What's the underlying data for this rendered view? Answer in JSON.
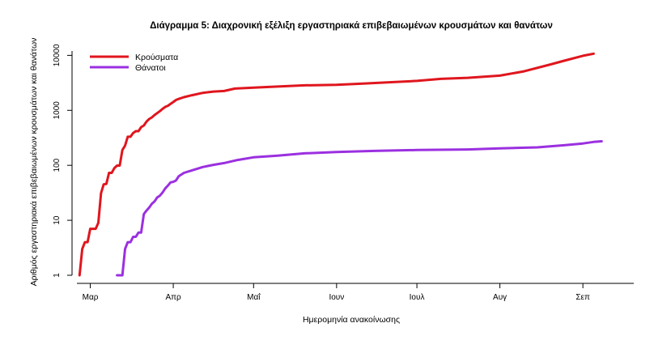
{
  "chart_data": {
    "type": "line",
    "title": "Διάγραμμα 5: Διαχρονική εξέλιξη εργαστηριακά επιβεβαιωμένων κρουσμάτων και θανάτων",
    "xlabel": "Ημερομηνία ανακοίνωσης",
    "ylabel": "Αριθμός εργαστηριακά επιβεβαιωμένων κρουσμάτων και θανάτων",
    "x_scale": "date",
    "xlim": [
      "2020-02-25",
      "2020-09-20"
    ],
    "x_ticks": [
      {
        "date": "2020-03-01",
        "label": "Μαρ"
      },
      {
        "date": "2020-04-01",
        "label": "Απρ"
      },
      {
        "date": "2020-05-01",
        "label": "Μαΐ"
      },
      {
        "date": "2020-06-01",
        "label": "Ιουν"
      },
      {
        "date": "2020-07-01",
        "label": "Ιουλ"
      },
      {
        "date": "2020-08-01",
        "label": "Αυγ"
      },
      {
        "date": "2020-09-01",
        "label": "Σεπ"
      }
    ],
    "y_scale": "log",
    "ylim": [
      1,
      12000
    ],
    "y_ticks": [
      {
        "value": 1,
        "label": "1"
      },
      {
        "value": 10,
        "label": "10"
      },
      {
        "value": 100,
        "label": "100"
      },
      {
        "value": 1000,
        "label": "1000"
      },
      {
        "value": 10000,
        "label": "10000"
      }
    ],
    "grid": false,
    "legend": "top-left",
    "series": [
      {
        "name": "Κρούσματα",
        "color": "#e0161e",
        "points": [
          [
            "2020-02-26",
            1
          ],
          [
            "2020-02-27",
            3
          ],
          [
            "2020-02-28",
            4
          ],
          [
            "2020-02-29",
            4
          ],
          [
            "2020-03-01",
            7
          ],
          [
            "2020-03-02",
            7
          ],
          [
            "2020-03-03",
            7
          ],
          [
            "2020-03-04",
            9
          ],
          [
            "2020-03-05",
            31
          ],
          [
            "2020-03-06",
            45
          ],
          [
            "2020-03-07",
            46
          ],
          [
            "2020-03-08",
            73
          ],
          [
            "2020-03-09",
            73
          ],
          [
            "2020-03-10",
            89
          ],
          [
            "2020-03-11",
            99
          ],
          [
            "2020-03-12",
            99
          ],
          [
            "2020-03-13",
            190
          ],
          [
            "2020-03-14",
            228
          ],
          [
            "2020-03-15",
            331
          ],
          [
            "2020-03-16",
            331
          ],
          [
            "2020-03-17",
            387
          ],
          [
            "2020-03-18",
            418
          ],
          [
            "2020-03-19",
            418
          ],
          [
            "2020-03-20",
            495
          ],
          [
            "2020-03-21",
            530
          ],
          [
            "2020-03-22",
            624
          ],
          [
            "2020-03-23",
            695
          ],
          [
            "2020-03-24",
            743
          ],
          [
            "2020-03-25",
            821
          ],
          [
            "2020-03-26",
            892
          ],
          [
            "2020-03-27",
            966
          ],
          [
            "2020-03-28",
            1061
          ],
          [
            "2020-03-29",
            1156
          ],
          [
            "2020-03-30",
            1212
          ],
          [
            "2020-03-31",
            1314
          ],
          [
            "2020-04-01",
            1415
          ],
          [
            "2020-04-02",
            1544
          ],
          [
            "2020-04-03",
            1613
          ],
          [
            "2020-04-05",
            1735
          ],
          [
            "2020-04-08",
            1884
          ],
          [
            "2020-04-12",
            2081
          ],
          [
            "2020-04-16",
            2192
          ],
          [
            "2020-04-20",
            2245
          ],
          [
            "2020-04-24",
            2490
          ],
          [
            "2020-05-01",
            2591
          ],
          [
            "2020-05-10",
            2710
          ],
          [
            "2020-05-20",
            2850
          ],
          [
            "2020-06-01",
            2917
          ],
          [
            "2020-06-10",
            3049
          ],
          [
            "2020-06-20",
            3227
          ],
          [
            "2020-07-01",
            3432
          ],
          [
            "2020-07-10",
            3732
          ],
          [
            "2020-07-20",
            3910
          ],
          [
            "2020-08-01",
            4279
          ],
          [
            "2020-08-10",
            5123
          ],
          [
            "2020-08-20",
            6858
          ],
          [
            "2020-08-25",
            7999
          ],
          [
            "2020-09-01",
            9839
          ],
          [
            "2020-09-05",
            10732
          ]
        ]
      },
      {
        "name": "Θάνατοι",
        "color": "#9b30e0",
        "points": [
          [
            "2020-03-11",
            1
          ],
          [
            "2020-03-12",
            1
          ],
          [
            "2020-03-13",
            1
          ],
          [
            "2020-03-14",
            3
          ],
          [
            "2020-03-15",
            4
          ],
          [
            "2020-03-16",
            4
          ],
          [
            "2020-03-17",
            5
          ],
          [
            "2020-03-18",
            5
          ],
          [
            "2020-03-19",
            6
          ],
          [
            "2020-03-20",
            6
          ],
          [
            "2020-03-21",
            13
          ],
          [
            "2020-03-22",
            15
          ],
          [
            "2020-03-23",
            17
          ],
          [
            "2020-03-24",
            20
          ],
          [
            "2020-03-25",
            22
          ],
          [
            "2020-03-26",
            26
          ],
          [
            "2020-03-27",
            28
          ],
          [
            "2020-03-28",
            32
          ],
          [
            "2020-03-29",
            38
          ],
          [
            "2020-03-30",
            43
          ],
          [
            "2020-03-31",
            49
          ],
          [
            "2020-04-01",
            50
          ],
          [
            "2020-04-02",
            53
          ],
          [
            "2020-04-03",
            63
          ],
          [
            "2020-04-05",
            73
          ],
          [
            "2020-04-08",
            81
          ],
          [
            "2020-04-12",
            93
          ],
          [
            "2020-04-16",
            102
          ],
          [
            "2020-04-20",
            110
          ],
          [
            "2020-04-25",
            125
          ],
          [
            "2020-05-01",
            140
          ],
          [
            "2020-05-10",
            150
          ],
          [
            "2020-05-20",
            165
          ],
          [
            "2020-06-01",
            175
          ],
          [
            "2020-06-15",
            183
          ],
          [
            "2020-07-01",
            190
          ],
          [
            "2020-07-20",
            194
          ],
          [
            "2020-08-01",
            203
          ],
          [
            "2020-08-15",
            212
          ],
          [
            "2020-08-25",
            232
          ],
          [
            "2020-09-01",
            250
          ],
          [
            "2020-09-05",
            266
          ],
          [
            "2020-09-08",
            274
          ]
        ]
      }
    ]
  }
}
